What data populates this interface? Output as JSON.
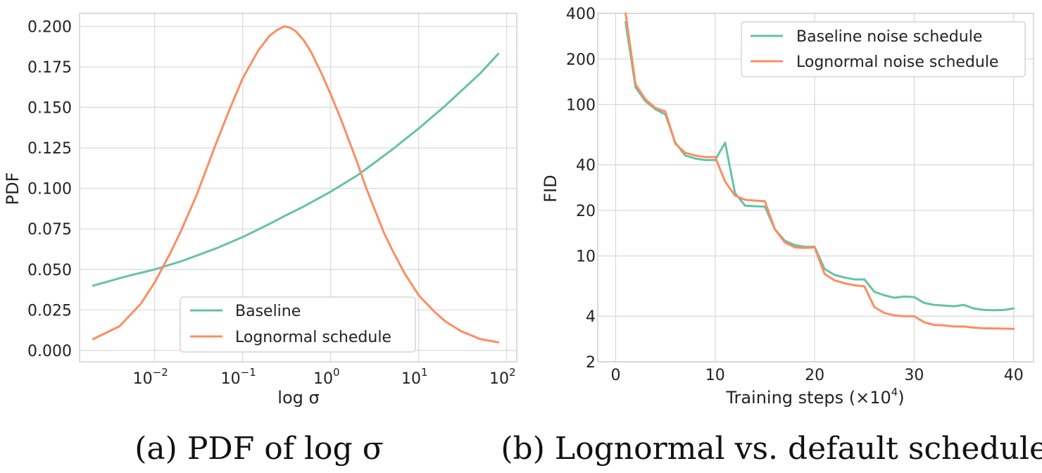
{
  "colors": {
    "baseline": "#66c2a5",
    "lognormal": "#fc8d62"
  },
  "caption_a": "(a) PDF of log σ",
  "caption_b": "(b) Lognormal vs. default schedules.",
  "chart_data": [
    {
      "type": "line",
      "xscale": "log",
      "title": "",
      "xlabel": "log σ",
      "ylabel": "PDF",
      "xlim": [
        0.0014,
        130
      ],
      "ylim": [
        -0.007,
        0.208
      ],
      "grid": true,
      "x_ticks": [
        {
          "value": 0.01,
          "base": "10",
          "exp": "−2"
        },
        {
          "value": 0.1,
          "base": "10",
          "exp": "−1"
        },
        {
          "value": 1,
          "base": "10",
          "exp": "0"
        },
        {
          "value": 10,
          "base": "10",
          "exp": "1"
        },
        {
          "value": 100,
          "base": "10",
          "exp": "2"
        }
      ],
      "y_ticks": [
        {
          "value": 0.0,
          "label": "0.000"
        },
        {
          "value": 0.025,
          "label": "0.025"
        },
        {
          "value": 0.05,
          "label": "0.050"
        },
        {
          "value": 0.075,
          "label": "0.075"
        },
        {
          "value": 0.1,
          "label": "0.100"
        },
        {
          "value": 0.125,
          "label": "0.125"
        },
        {
          "value": 0.15,
          "label": "0.150"
        },
        {
          "value": 0.175,
          "label": "0.175"
        },
        {
          "value": 0.2,
          "label": "0.200"
        }
      ],
      "legend": {
        "position": "lower-center"
      },
      "series": [
        {
          "name": "Baseline",
          "color_key": "baseline",
          "x": [
            0.002,
            0.005,
            0.01,
            0.02,
            0.05,
            0.1,
            0.2,
            0.3,
            0.5,
            1,
            2,
            3,
            5,
            10,
            20,
            50,
            80
          ],
          "y": [
            0.04,
            0.046,
            0.05,
            0.055,
            0.063,
            0.07,
            0.078,
            0.083,
            0.089,
            0.098,
            0.108,
            0.115,
            0.124,
            0.137,
            0.151,
            0.171,
            0.183
          ]
        },
        {
          "name": "Lognormal schedule",
          "color_key": "lognormal",
          "x": [
            0.002,
            0.004,
            0.007,
            0.01,
            0.015,
            0.02,
            0.03,
            0.05,
            0.07,
            0.1,
            0.15,
            0.2,
            0.25,
            0.3,
            0.35,
            0.4,
            0.5,
            0.6,
            0.8,
            1.0,
            1.3,
            1.6,
            2.0,
            2.5,
            3.0,
            4.0,
            5.0,
            7.0,
            10,
            15,
            20,
            30,
            50,
            80
          ],
          "y": [
            0.007,
            0.015,
            0.029,
            0.042,
            0.06,
            0.074,
            0.096,
            0.128,
            0.148,
            0.168,
            0.185,
            0.194,
            0.198,
            0.2,
            0.199,
            0.197,
            0.191,
            0.184,
            0.17,
            0.158,
            0.143,
            0.13,
            0.116,
            0.101,
            0.09,
            0.073,
            0.062,
            0.047,
            0.034,
            0.024,
            0.018,
            0.012,
            0.007,
            0.005
          ]
        }
      ]
    },
    {
      "type": "line",
      "yscale": "log",
      "title": "",
      "xlabel_main": "Training steps (×10",
      "xlabel_exp": "4",
      "xlabel_end": ")",
      "ylabel": "FID",
      "xlim": [
        -1.8,
        42
      ],
      "ylim": [
        2,
        400
      ],
      "grid": true,
      "x_ticks": [
        {
          "value": 0,
          "label": "0"
        },
        {
          "value": 10,
          "label": "10"
        },
        {
          "value": 20,
          "label": "20"
        },
        {
          "value": 30,
          "label": "30"
        },
        {
          "value": 40,
          "label": "40"
        }
      ],
      "y_ticks": [
        {
          "value": 2,
          "label": "2"
        },
        {
          "value": 4,
          "label": "4"
        },
        {
          "value": 10,
          "label": "10"
        },
        {
          "value": 20,
          "label": "20"
        },
        {
          "value": 40,
          "label": "40"
        },
        {
          "value": 100,
          "label": "100"
        },
        {
          "value": 200,
          "label": "200"
        },
        {
          "value": 400,
          "label": "400"
        }
      ],
      "legend": {
        "position": "upper-right"
      },
      "series": [
        {
          "name": "Baseline noise schedule",
          "color_key": "baseline",
          "x": [
            1,
            2,
            3,
            4,
            5,
            6,
            7,
            8,
            9,
            10,
            11,
            12,
            13,
            14,
            15,
            16,
            17,
            18,
            19,
            20,
            21,
            22,
            23,
            24,
            25,
            26,
            27,
            28,
            29,
            30,
            31,
            32,
            33,
            34,
            35,
            36,
            37,
            38,
            39,
            40
          ],
          "y": [
            350,
            130,
            105,
            93,
            86,
            56,
            46,
            44,
            43,
            43,
            56,
            26,
            21.5,
            21.3,
            21.2,
            15,
            12.6,
            11.8,
            11.5,
            11.5,
            8.2,
            7.5,
            7.2,
            7.0,
            7.0,
            5.8,
            5.5,
            5.3,
            5.4,
            5.35,
            4.9,
            4.75,
            4.7,
            4.65,
            4.75,
            4.5,
            4.4,
            4.38,
            4.4,
            4.5
          ]
        },
        {
          "name": "Lognormal noise schedule",
          "color_key": "lognormal",
          "x": [
            1,
            2,
            3,
            4,
            5,
            6,
            7,
            8,
            9,
            10,
            11,
            12,
            13,
            14,
            15,
            16,
            17,
            18,
            19,
            20,
            21,
            22,
            23,
            24,
            25,
            26,
            27,
            28,
            29,
            30,
            31,
            32,
            33,
            34,
            35,
            36,
            37,
            38,
            39,
            40
          ],
          "y": [
            400,
            136,
            108,
            95,
            90,
            55,
            48,
            46,
            45,
            45,
            31,
            25,
            23.5,
            23.2,
            23,
            15,
            12.3,
            11.4,
            11.3,
            11.4,
            7.6,
            6.9,
            6.6,
            6.4,
            6.3,
            4.6,
            4.2,
            4.05,
            4.0,
            4.0,
            3.65,
            3.5,
            3.48,
            3.42,
            3.42,
            3.36,
            3.33,
            3.32,
            3.31,
            3.3
          ]
        }
      ]
    }
  ]
}
